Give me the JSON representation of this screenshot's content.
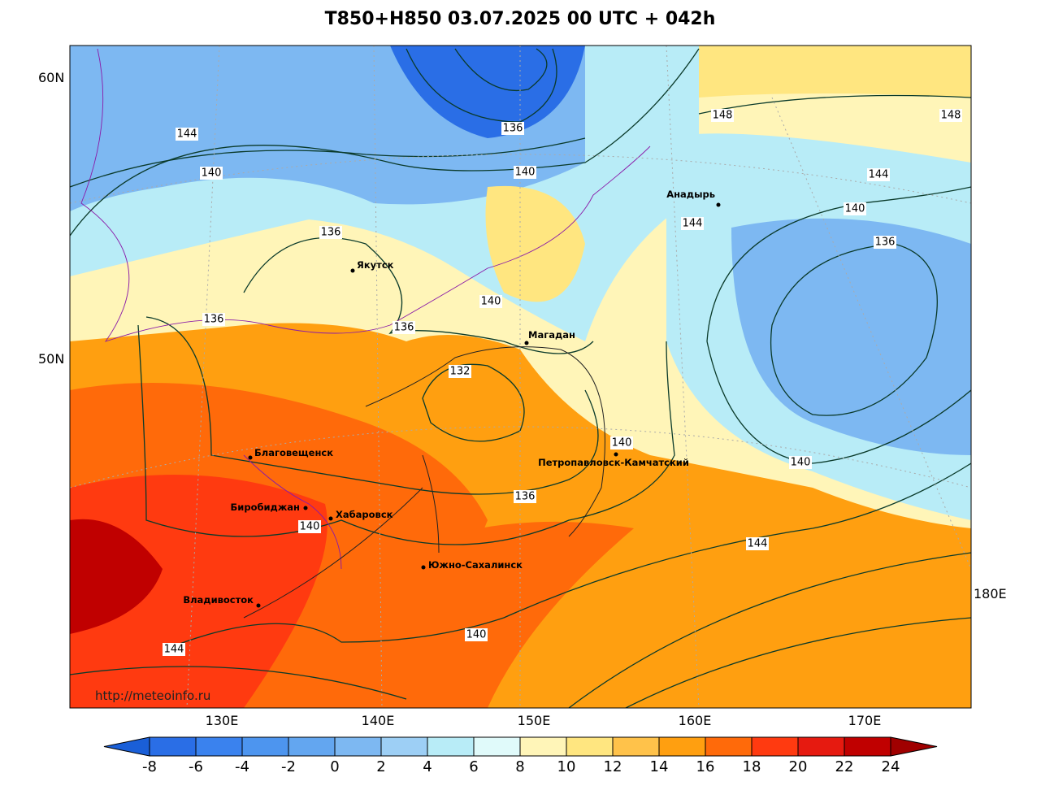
{
  "title": "T850+H850 03.07.2025 00 UTC + 042h",
  "lat_labels": [
    "60N",
    "50N"
  ],
  "lon_labels": [
    "130E",
    "140E",
    "150E",
    "160E",
    "170E",
    "180E"
  ],
  "credit": "http://meteoinfo.ru",
  "cities": [
    "Якутск",
    "Магадан",
    "Анадырь",
    "Петропавловск-Камчатский",
    "Благовещенск",
    "Биробиджан",
    "Хабаровск",
    "Южно-Сахалинск",
    "Владивосток"
  ],
  "contour_labels": [
    144,
    140,
    136,
    136,
    136,
    140,
    136,
    140,
    148,
    148,
    144,
    140,
    136,
    144,
    132,
    140,
    140,
    136,
    140,
    144,
    140,
    144
  ],
  "colorbar": {
    "ticks": [
      -8,
      -6,
      -4,
      -2,
      0,
      2,
      4,
      6,
      8,
      10,
      12,
      14,
      16,
      18,
      20,
      22,
      24
    ],
    "colors": [
      "#1a5fd8",
      "#2a6ee6",
      "#3a82ee",
      "#4d95ef",
      "#63a6f0",
      "#7db8f2",
      "#9dcff5",
      "#b8ecf7",
      "#e0fafa",
      "#fff5b8",
      "#ffe680",
      "#ffc24a",
      "#ff9f10",
      "#ff6a0a",
      "#ff3a10",
      "#e61a10",
      "#c00000",
      "#a00000"
    ]
  }
}
